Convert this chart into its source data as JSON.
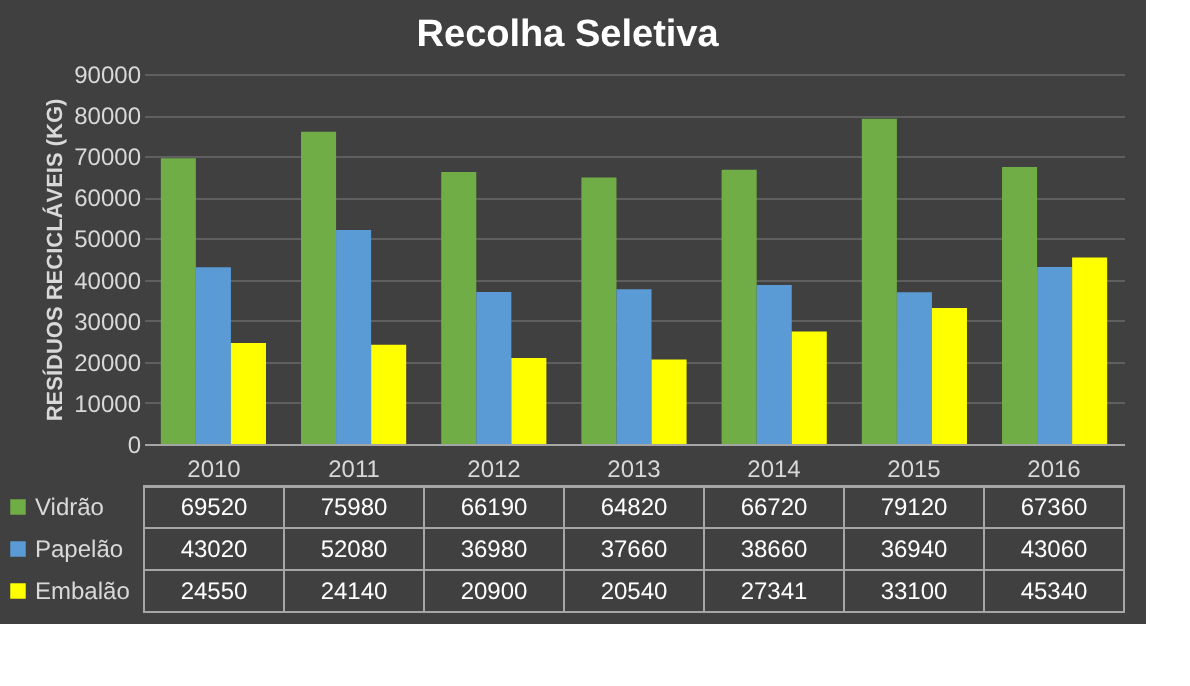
{
  "chart_data": {
    "type": "bar",
    "title": "Recolha Seletiva",
    "ylabel": "RESÍDUOS RECICLÁVEIS (KG)",
    "categories": [
      "2010",
      "2011",
      "2012",
      "2013",
      "2014",
      "2015",
      "2016"
    ],
    "series": [
      {
        "name": "Vidrão",
        "color": "#70ad47",
        "values": [
          69520,
          75980,
          66190,
          64820,
          66720,
          79120,
          67360
        ]
      },
      {
        "name": "Papelão",
        "color": "#5b9bd5",
        "values": [
          43020,
          52080,
          36980,
          37660,
          38660,
          36940,
          43060
        ]
      },
      {
        "name": "Embalão",
        "color": "#ffff00",
        "values": [
          24550,
          24140,
          20900,
          20540,
          27341,
          33100,
          45340
        ]
      }
    ],
    "ylim": [
      0,
      90000
    ],
    "yticks": [
      0,
      10000,
      20000,
      30000,
      40000,
      50000,
      60000,
      70000,
      80000,
      90000
    ],
    "grid": "y",
    "legend": "bottom",
    "data_labels": true
  }
}
